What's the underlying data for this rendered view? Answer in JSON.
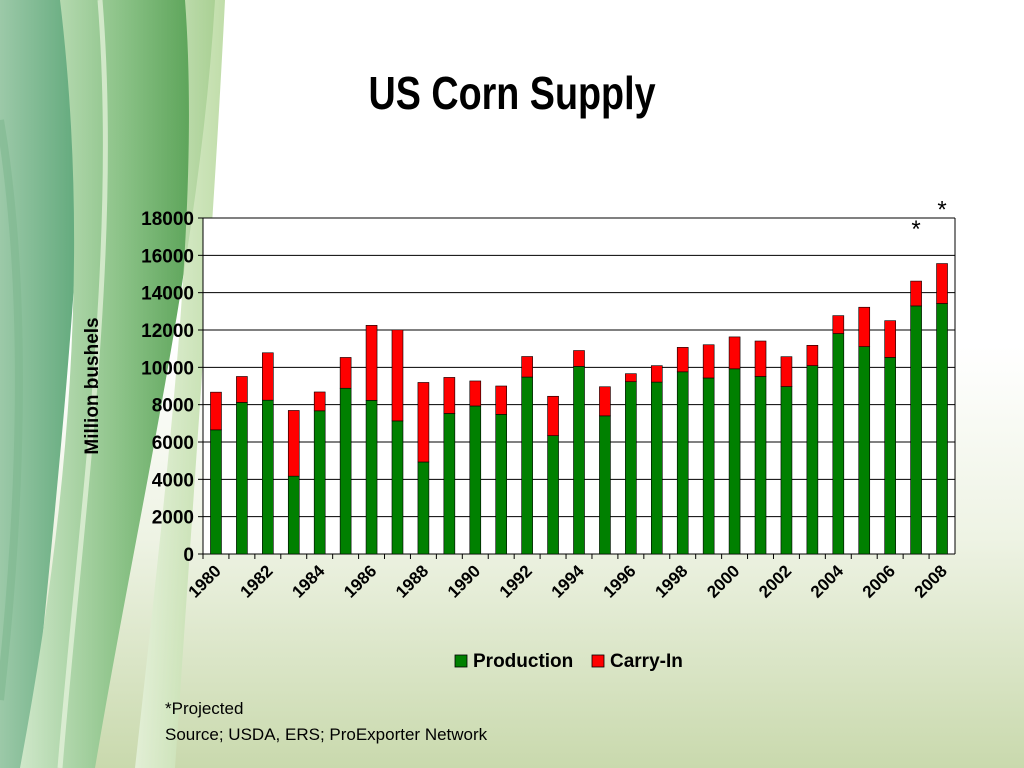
{
  "slide": {
    "title": "US Corn Supply",
    "footnote_projected": "*Projected",
    "footnote_source": "Source; USDA, ERS; ProExporter Network"
  },
  "chart_data": {
    "type": "bar",
    "stacked": true,
    "ylabel": "Million bushels",
    "xlabel": "",
    "ylim": [
      0,
      18000
    ],
    "yticks": [
      0,
      2000,
      4000,
      6000,
      8000,
      10000,
      12000,
      14000,
      16000,
      18000
    ],
    "grid": true,
    "legend_position": "bottom",
    "categories": [
      "1980",
      "1981",
      "1982",
      "1983",
      "1984",
      "1985",
      "1986",
      "1987",
      "1988",
      "1989",
      "1990",
      "1991",
      "1992",
      "1993",
      "1994",
      "1995",
      "1996",
      "1997",
      "1998",
      "1999",
      "2000",
      "2001",
      "2002",
      "2003",
      "2004",
      "2005",
      "2006",
      "2007",
      "2008"
    ],
    "tick_labels": [
      "1980",
      "1982",
      "1984",
      "1986",
      "1988",
      "1990",
      "1992",
      "1994",
      "1996",
      "1998",
      "2000",
      "2002",
      "2004",
      "2006",
      "2008"
    ],
    "series": [
      {
        "name": "Production",
        "color": "#008000",
        "values": [
          6650,
          8120,
          8240,
          4170,
          7670,
          8880,
          8230,
          7130,
          4930,
          7530,
          7930,
          7480,
          9480,
          6340,
          10050,
          7400,
          9230,
          9210,
          9760,
          9430,
          9920,
          9510,
          8970,
          10090,
          11810,
          11110,
          10530,
          13290,
          13420
        ]
      },
      {
        "name": "Carry-In",
        "color": "#ff0000",
        "values": [
          2020,
          1390,
          2540,
          3520,
          1010,
          1650,
          4020,
          4880,
          4260,
          1930,
          1340,
          1520,
          1100,
          2110,
          850,
          1560,
          430,
          880,
          1310,
          1780,
          1710,
          1900,
          1600,
          1090,
          960,
          2110,
          1970,
          1330,
          2140
        ]
      }
    ],
    "annotations": [
      {
        "text": "*",
        "category": "2007"
      },
      {
        "text": "*",
        "category": "2008"
      }
    ]
  }
}
